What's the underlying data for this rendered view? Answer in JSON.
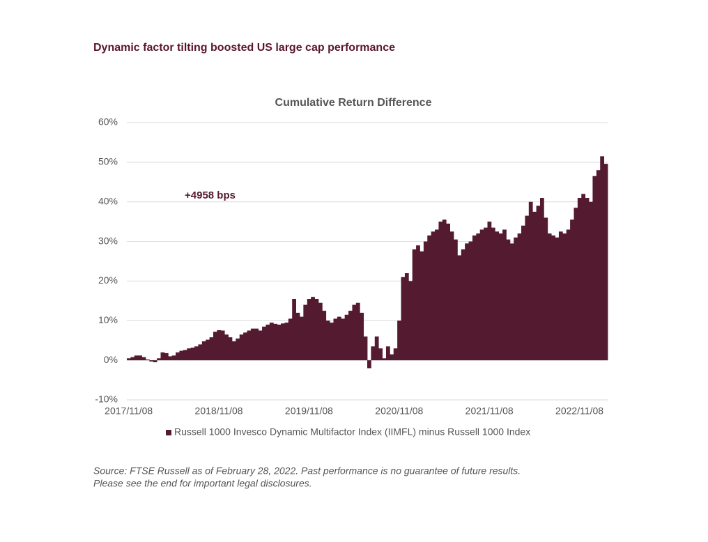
{
  "chart_data": {
    "type": "bar",
    "page_title": "Dynamic factor tilting boosted US large cap performance",
    "title": "Cumulative Return Difference",
    "annotation": "+4958 bps",
    "source_lines": [
      "Source: FTSE Russell as of February 28, 2022. Past performance is no guarantee of future results.",
      "Please see the end for important legal disclosures."
    ],
    "categories": [
      "2017/11/08",
      null,
      null,
      null,
      null,
      null,
      null,
      null,
      null,
      null,
      null,
      null,
      null,
      null,
      null,
      null,
      null,
      null,
      null,
      null,
      null,
      null,
      null,
      null,
      "2018/11/08",
      null,
      null,
      null,
      null,
      null,
      null,
      null,
      null,
      null,
      null,
      null,
      null,
      null,
      null,
      null,
      null,
      null,
      null,
      null,
      null,
      null,
      null,
      null,
      "2019/11/08",
      null,
      null,
      null,
      null,
      null,
      null,
      null,
      null,
      null,
      null,
      null,
      null,
      null,
      null,
      null,
      null,
      null,
      null,
      null,
      null,
      null,
      null,
      null,
      "2020/11/08",
      null,
      null,
      null,
      null,
      null,
      null,
      null,
      null,
      null,
      null,
      null,
      null,
      null,
      null,
      null,
      null,
      null,
      null,
      null,
      null,
      null,
      null,
      null,
      "2021/11/08",
      null,
      null,
      null,
      null,
      null,
      null,
      null,
      null,
      null,
      null,
      null,
      null,
      null,
      null,
      null,
      null,
      null,
      null,
      null,
      null,
      null,
      null,
      null,
      "2022/11/08",
      null,
      null,
      null,
      null,
      null,
      null,
      null
    ],
    "series": [
      {
        "name": "Russell 1000 Invesco Dynamic Multifactor Index (IIMFL) minus Russell 1000 Index",
        "color": "#541a30",
        "values": [
          0.5,
          0.8,
          1.2,
          1.2,
          0.8,
          0.2,
          -0.3,
          -0.5,
          0.5,
          2.0,
          1.8,
          1.0,
          1.2,
          2.0,
          2.4,
          2.6,
          3.0,
          3.2,
          3.5,
          4.0,
          4.8,
          5.2,
          5.8,
          7.2,
          7.6,
          7.5,
          6.5,
          5.8,
          4.8,
          5.5,
          6.5,
          7.0,
          7.5,
          8.0,
          8.0,
          7.5,
          8.5,
          9.0,
          9.5,
          9.2,
          9.0,
          9.3,
          9.5,
          10.5,
          15.5,
          12.0,
          11.0,
          14.0,
          15.5,
          16.0,
          15.5,
          14.5,
          12.5,
          10.0,
          9.5,
          10.5,
          11.0,
          10.5,
          11.5,
          12.5,
          14.0,
          14.5,
          12.0,
          6.0,
          -2.0,
          3.5,
          6.0,
          3.0,
          0.5,
          3.5,
          1.5,
          3.0,
          10.0,
          21.0,
          22.0,
          20.0,
          28.0,
          29.0,
          27.5,
          30.0,
          31.5,
          32.5,
          33.0,
          35.0,
          35.5,
          34.5,
          32.5,
          30.5,
          26.5,
          28.0,
          29.5,
          30.0,
          31.5,
          32.0,
          33.0,
          33.5,
          35.0,
          33.5,
          32.5,
          32.0,
          33.0,
          30.5,
          29.5,
          31.0,
          32.0,
          34.0,
          36.5,
          40.0,
          37.5,
          39.0,
          41.0,
          36.0,
          32.0,
          31.5,
          31.0,
          32.5,
          32.0,
          33.0,
          35.5,
          38.5,
          41.0,
          42.0,
          41.0,
          40.0,
          46.5,
          48.0,
          51.5,
          49.6
        ]
      }
    ],
    "ylim": [
      -10,
      60
    ],
    "yticks": [
      {
        "value": -10,
        "label": "-10%"
      },
      {
        "value": 0,
        "label": "0%"
      },
      {
        "value": 10,
        "label": "10%"
      },
      {
        "value": 20,
        "label": "20%"
      },
      {
        "value": 30,
        "label": "30%"
      },
      {
        "value": 40,
        "label": "40%"
      },
      {
        "value": 50,
        "label": "50%"
      },
      {
        "value": 60,
        "label": "60%"
      }
    ],
    "grid": true
  }
}
